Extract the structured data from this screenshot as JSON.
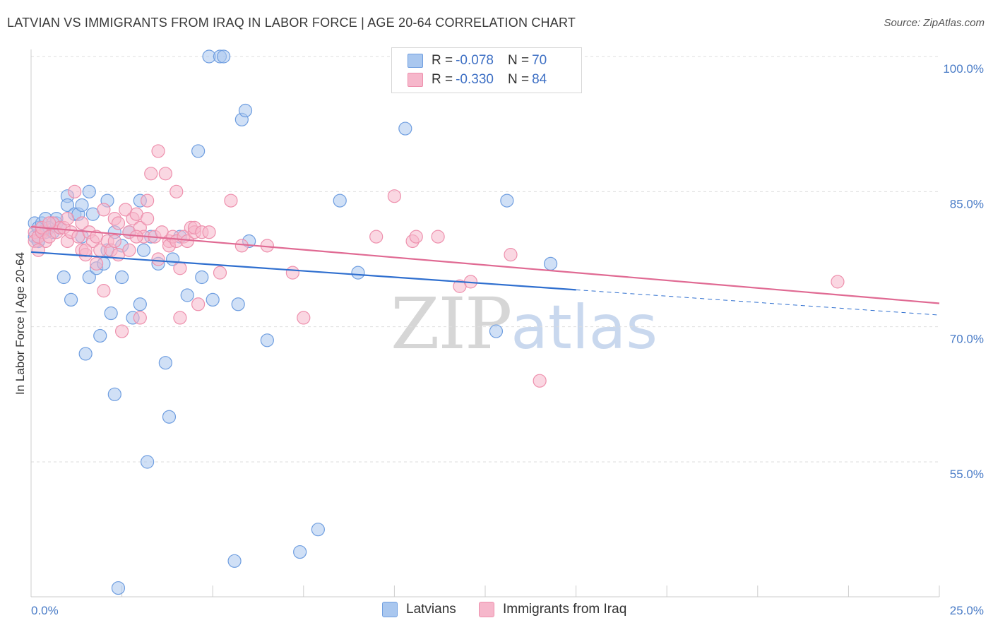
{
  "title": "LATVIAN VS IMMIGRANTS FROM IRAQ IN LABOR FORCE | AGE 20-64 CORRELATION CHART",
  "source": "Source: ZipAtlas.com",
  "watermark": {
    "zip": "ZIP",
    "atlas": "atlas"
  },
  "legend": {
    "rows": [
      {
        "r_label": "R =",
        "r_value": "-0.078",
        "n_label": "N =",
        "n_value": "70"
      },
      {
        "r_label": "R =",
        "r_value": "-0.330",
        "n_label": "N =",
        "n_value": "84"
      }
    ]
  },
  "bottom_legend": [
    "Latvians",
    "Immigrants from Iraq"
  ],
  "colors": {
    "latvians_fill": "#a9c7ef",
    "latvians_stroke": "#6f9ee0",
    "latvians_line": "#2f6fcf",
    "iraq_fill": "#f6b7cb",
    "iraq_stroke": "#ee90ad",
    "iraq_line": "#e06a93",
    "grid": "#dddddd",
    "tick_text": "#4a7cc7"
  },
  "chart_data": {
    "type": "scatter",
    "title": "LATVIAN VS IMMIGRANTS FROM IRAQ IN LABOR FORCE | AGE 20-64 CORRELATION CHART",
    "xlabel": "",
    "ylabel": "In Labor Force | Age 20-64",
    "xlim": [
      0,
      25
    ],
    "ylim": [
      40,
      102
    ],
    "x_tick_labels": [
      {
        "value": 0,
        "label": "0.0%"
      },
      {
        "value": 25,
        "label": "25.0%"
      }
    ],
    "y_tick_labels": [
      {
        "value": 100,
        "label": "100.0%"
      },
      {
        "value": 85,
        "label": "85.0%"
      },
      {
        "value": 70,
        "label": "70.0%"
      },
      {
        "value": 55,
        "label": "55.0%"
      }
    ],
    "grid": true,
    "legend_position": "top-center",
    "series": [
      {
        "name": "Latvians",
        "r": -0.078,
        "n": 70,
        "trend": {
          "x0": 0,
          "y0": 78.3,
          "x1": 15,
          "y1": 74.1,
          "dashed_to": 25,
          "dashed_y": 71.3
        },
        "points": [
          [
            0.1,
            81.5
          ],
          [
            0.1,
            80.0
          ],
          [
            0.2,
            79.5
          ],
          [
            0.2,
            81.0
          ],
          [
            0.3,
            81.5
          ],
          [
            0.3,
            80.5
          ],
          [
            0.4,
            82.0
          ],
          [
            0.4,
            80.5
          ],
          [
            0.5,
            81.0
          ],
          [
            0.6,
            80.5
          ],
          [
            0.7,
            81.5
          ],
          [
            0.7,
            82.0
          ],
          [
            0.8,
            81.0
          ],
          [
            0.9,
            75.5
          ],
          [
            1.0,
            84.5
          ],
          [
            1.0,
            83.5
          ],
          [
            1.1,
            73.0
          ],
          [
            1.2,
            82.5
          ],
          [
            1.3,
            82.5
          ],
          [
            1.4,
            80.0
          ],
          [
            1.4,
            83.5
          ],
          [
            1.5,
            67.0
          ],
          [
            1.6,
            75.5
          ],
          [
            1.6,
            85.0
          ],
          [
            1.7,
            82.5
          ],
          [
            1.8,
            76.5
          ],
          [
            1.9,
            69.0
          ],
          [
            2.0,
            77.0
          ],
          [
            2.1,
            78.5
          ],
          [
            2.1,
            84.0
          ],
          [
            2.2,
            71.5
          ],
          [
            2.3,
            80.5
          ],
          [
            2.3,
            62.5
          ],
          [
            2.4,
            41.0
          ],
          [
            2.5,
            79.0
          ],
          [
            2.5,
            75.5
          ],
          [
            2.7,
            80.5
          ],
          [
            2.8,
            71.0
          ],
          [
            3.0,
            84.0
          ],
          [
            3.0,
            72.5
          ],
          [
            3.1,
            78.5
          ],
          [
            3.2,
            55.0
          ],
          [
            3.3,
            80.0
          ],
          [
            3.5,
            77.0
          ],
          [
            3.7,
            66.0
          ],
          [
            3.8,
            60.0
          ],
          [
            3.9,
            77.5
          ],
          [
            4.1,
            80.0
          ],
          [
            4.3,
            73.5
          ],
          [
            4.6,
            89.5
          ],
          [
            4.7,
            75.5
          ],
          [
            4.9,
            100.0
          ],
          [
            5.0,
            73.0
          ],
          [
            5.2,
            100.0
          ],
          [
            5.3,
            100.0
          ],
          [
            5.6,
            44.0
          ],
          [
            5.7,
            72.5
          ],
          [
            5.8,
            93.0
          ],
          [
            5.9,
            94.0
          ],
          [
            6.0,
            79.5
          ],
          [
            6.5,
            68.5
          ],
          [
            7.4,
            45.0
          ],
          [
            7.9,
            47.5
          ],
          [
            8.5,
            84.0
          ],
          [
            9.0,
            76.0
          ],
          [
            10.3,
            92.0
          ],
          [
            12.8,
            69.5
          ],
          [
            13.1,
            84.0
          ],
          [
            14.3,
            77.0
          ],
          [
            0.2,
            79.5
          ]
        ]
      },
      {
        "name": "Immigrants from Iraq",
        "r": -0.33,
        "n": 84,
        "trend": {
          "x0": 0,
          "y0": 81.1,
          "x1": 25,
          "y1": 72.6
        },
        "points": [
          [
            0.1,
            80.5
          ],
          [
            0.1,
            79.5
          ],
          [
            0.2,
            80.0
          ],
          [
            0.3,
            80.5
          ],
          [
            0.3,
            81.0
          ],
          [
            0.4,
            79.5
          ],
          [
            0.5,
            80.0
          ],
          [
            0.6,
            81.5
          ],
          [
            0.7,
            80.5
          ],
          [
            0.8,
            81.0
          ],
          [
            0.9,
            81.0
          ],
          [
            1.0,
            82.0
          ],
          [
            1.0,
            79.5
          ],
          [
            1.1,
            80.5
          ],
          [
            1.2,
            85.0
          ],
          [
            1.3,
            80.0
          ],
          [
            1.4,
            81.5
          ],
          [
            1.4,
            78.5
          ],
          [
            1.5,
            78.0
          ],
          [
            1.6,
            80.5
          ],
          [
            1.7,
            79.5
          ],
          [
            1.8,
            80.0
          ],
          [
            1.8,
            77.0
          ],
          [
            1.9,
            78.5
          ],
          [
            2.0,
            83.0
          ],
          [
            2.0,
            74.0
          ],
          [
            2.1,
            79.5
          ],
          [
            2.2,
            78.5
          ],
          [
            2.3,
            82.0
          ],
          [
            2.3,
            79.5
          ],
          [
            2.4,
            81.5
          ],
          [
            2.4,
            78.0
          ],
          [
            2.5,
            69.5
          ],
          [
            2.6,
            83.0
          ],
          [
            2.7,
            80.5
          ],
          [
            2.7,
            78.5
          ],
          [
            2.8,
            82.0
          ],
          [
            2.9,
            82.5
          ],
          [
            3.0,
            81.0
          ],
          [
            3.0,
            71.0
          ],
          [
            3.1,
            80.0
          ],
          [
            3.2,
            82.0
          ],
          [
            3.2,
            84.0
          ],
          [
            3.3,
            87.0
          ],
          [
            3.4,
            80.0
          ],
          [
            3.5,
            89.5
          ],
          [
            3.5,
            77.5
          ],
          [
            3.6,
            80.5
          ],
          [
            3.7,
            87.0
          ],
          [
            3.8,
            79.5
          ],
          [
            3.8,
            79.0
          ],
          [
            3.9,
            80.0
          ],
          [
            4.0,
            79.5
          ],
          [
            4.0,
            85.0
          ],
          [
            4.1,
            71.0
          ],
          [
            4.1,
            76.5
          ],
          [
            4.2,
            80.0
          ],
          [
            4.3,
            79.5
          ],
          [
            4.4,
            81.0
          ],
          [
            4.5,
            80.5
          ],
          [
            4.5,
            81.0
          ],
          [
            4.6,
            72.5
          ],
          [
            4.7,
            80.5
          ],
          [
            4.9,
            80.5
          ],
          [
            5.2,
            76.0
          ],
          [
            5.5,
            84.0
          ],
          [
            5.8,
            79.0
          ],
          [
            6.5,
            79.0
          ],
          [
            7.2,
            76.0
          ],
          [
            7.5,
            71.0
          ],
          [
            9.5,
            80.0
          ],
          [
            10.0,
            84.5
          ],
          [
            10.5,
            79.5
          ],
          [
            10.6,
            80.0
          ],
          [
            11.2,
            80.0
          ],
          [
            11.8,
            74.5
          ],
          [
            12.1,
            75.0
          ],
          [
            13.2,
            78.0
          ],
          [
            14.0,
            64.0
          ],
          [
            22.2,
            75.0
          ],
          [
            0.2,
            78.5
          ],
          [
            0.5,
            81.5
          ],
          [
            1.5,
            78.5
          ],
          [
            2.9,
            80.0
          ]
        ]
      }
    ]
  }
}
